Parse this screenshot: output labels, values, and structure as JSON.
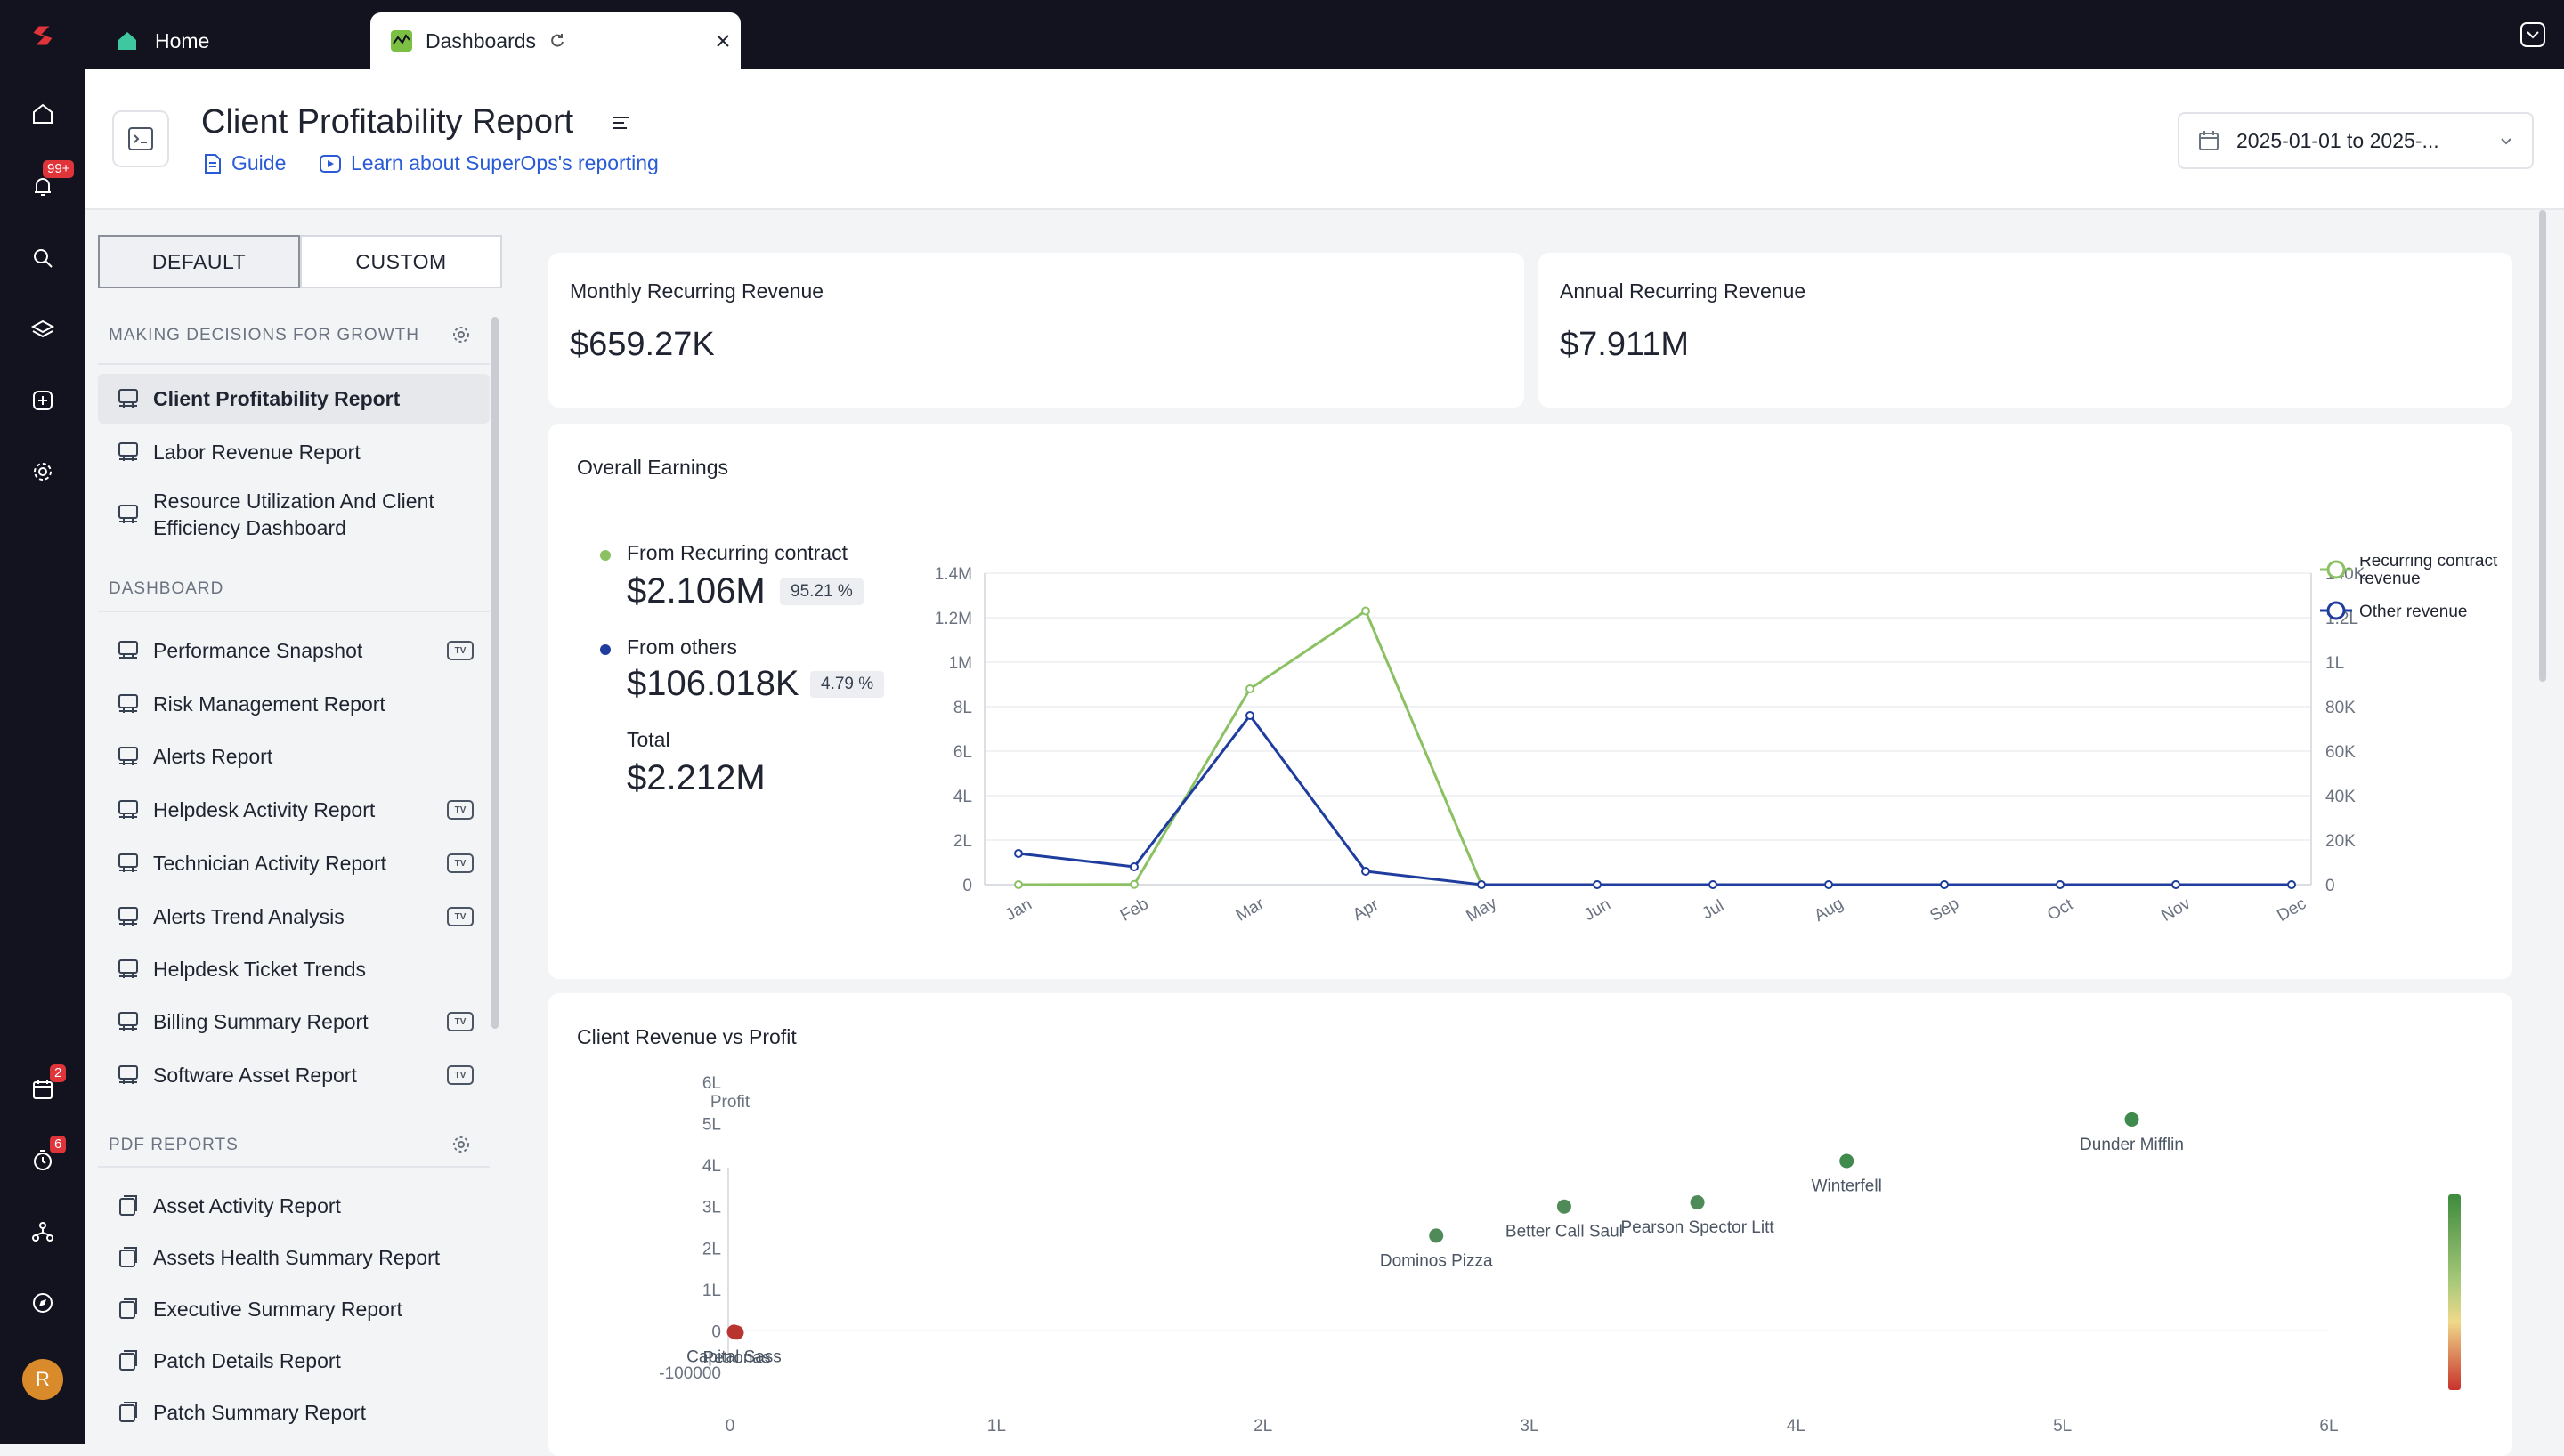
{
  "tabs": {
    "home": "Home",
    "dashboards": "Dashboards"
  },
  "rail": {
    "notification_badge": "99+",
    "calendar_badge": "2",
    "timer_badge": "6",
    "avatar_initial": "R"
  },
  "header": {
    "title": "Client Profitability Report",
    "guide_link": "Guide",
    "learn_link": "Learn about SuperOps's reporting",
    "date_range": "2025-01-01 to 2025-..."
  },
  "sidebar": {
    "toggle": {
      "default": "DEFAULT",
      "custom": "CUSTOM",
      "selected": "DEFAULT"
    },
    "sections": [
      {
        "title": "MAKING DECISIONS FOR GROWTH",
        "items": [
          {
            "label": "Client Profitability Report",
            "active": true
          },
          {
            "label": "Labor Revenue Report"
          },
          {
            "label": "Resource Utilization And Client Efficiency Dashboard"
          }
        ]
      },
      {
        "title": "DASHBOARD",
        "items": [
          {
            "label": "Performance Snapshot",
            "tv": true
          },
          {
            "label": "Risk Management Report"
          },
          {
            "label": "Alerts Report"
          },
          {
            "label": "Helpdesk Activity Report",
            "tv": true
          },
          {
            "label": "Technician Activity Report",
            "tv": true
          },
          {
            "label": "Alerts Trend Analysis",
            "tv": true
          },
          {
            "label": "Helpdesk Ticket Trends"
          },
          {
            "label": "Billing Summary Report",
            "tv": true
          },
          {
            "label": "Software Asset Report",
            "tv": true
          }
        ]
      },
      {
        "title": "PDF REPORTS",
        "items": [
          {
            "label": "Asset Activity Report"
          },
          {
            "label": "Assets Health Summary Report"
          },
          {
            "label": "Executive Summary Report"
          },
          {
            "label": "Patch Details Report"
          },
          {
            "label": "Patch Summary Report"
          }
        ]
      }
    ]
  },
  "kpis": {
    "mrr": {
      "label": "Monthly Recurring Revenue",
      "value": "$659.27K"
    },
    "arr": {
      "label": "Annual Recurring Revenue",
      "value": "$7.911M"
    }
  },
  "earnings": {
    "title": "Overall Earnings",
    "recurring_label": "From Recurring contract",
    "recurring_value": "$2.106M",
    "recurring_pct": "95.21 %",
    "others_label": "From others",
    "others_value": "$106.018K",
    "others_pct": "4.79 %",
    "total_label": "Total",
    "total_value": "$2.212M"
  },
  "scatter_title": "Client Revenue vs Profit",
  "colors": {
    "recurring": "#8bc163",
    "others": "#1f3d9e",
    "accent": "#2a5bd7",
    "rail": "#12131f"
  },
  "chart_data": [
    {
      "type": "line",
      "title": "Overall Earnings",
      "categories": [
        "Jan",
        "Feb",
        "Mar",
        "Apr",
        "May",
        "Jun",
        "Jul",
        "Aug",
        "Sep",
        "Oct",
        "Nov",
        "Dec"
      ],
      "series": [
        {
          "name": "Recurring contract revenue",
          "axis": "left",
          "values": [
            0,
            1000,
            880000,
            1230000,
            0,
            0,
            0,
            0,
            0,
            0,
            0,
            0
          ]
        },
        {
          "name": "Other revenue",
          "axis": "right",
          "values": [
            14000,
            8000,
            76000,
            6000,
            0,
            0,
            0,
            0,
            0,
            0,
            0,
            0
          ]
        }
      ],
      "y_left": {
        "ticks": [
          "0",
          "2L",
          "4L",
          "6L",
          "8L",
          "1M",
          "1.2M",
          "1.4M"
        ],
        "range": [
          0,
          1400000
        ]
      },
      "y_right": {
        "ticks": [
          "0",
          "20K",
          "40K",
          "60K",
          "80K",
          "1L",
          "1.2L",
          "140K"
        ],
        "range": [
          0,
          140000
        ]
      },
      "legend": "top-right",
      "grid": true
    },
    {
      "type": "scatter",
      "title": "Client Revenue vs Profit",
      "ylabel": "Profit",
      "x_ticks": [
        "0",
        "1L",
        "2L",
        "3L",
        "4L",
        "5L",
        "6L"
      ],
      "x_range": [
        0,
        600000
      ],
      "y_ticks": [
        "-100000",
        "0",
        "1L",
        "2L",
        "3L",
        "4L",
        "5L",
        "6L"
      ],
      "y_range": [
        -100000,
        600000
      ],
      "points": [
        {
          "label": "Capital Sass",
          "x": 1500,
          "y": -2000
        },
        {
          "label": "Petronas",
          "x": 2500,
          "y": -4000
        },
        {
          "label": "Dominos Pizza",
          "x": 265000,
          "y": 230000
        },
        {
          "label": "Better Call Saul",
          "x": 313000,
          "y": 300000
        },
        {
          "label": "Pearson Spector Litt",
          "x": 363000,
          "y": 310000
        },
        {
          "label": "Winterfell",
          "x": 419000,
          "y": 410000
        },
        {
          "label": "Dunder Mifflin",
          "x": 526000,
          "y": 510000
        }
      ],
      "color_scale": "green-to-red"
    }
  ]
}
